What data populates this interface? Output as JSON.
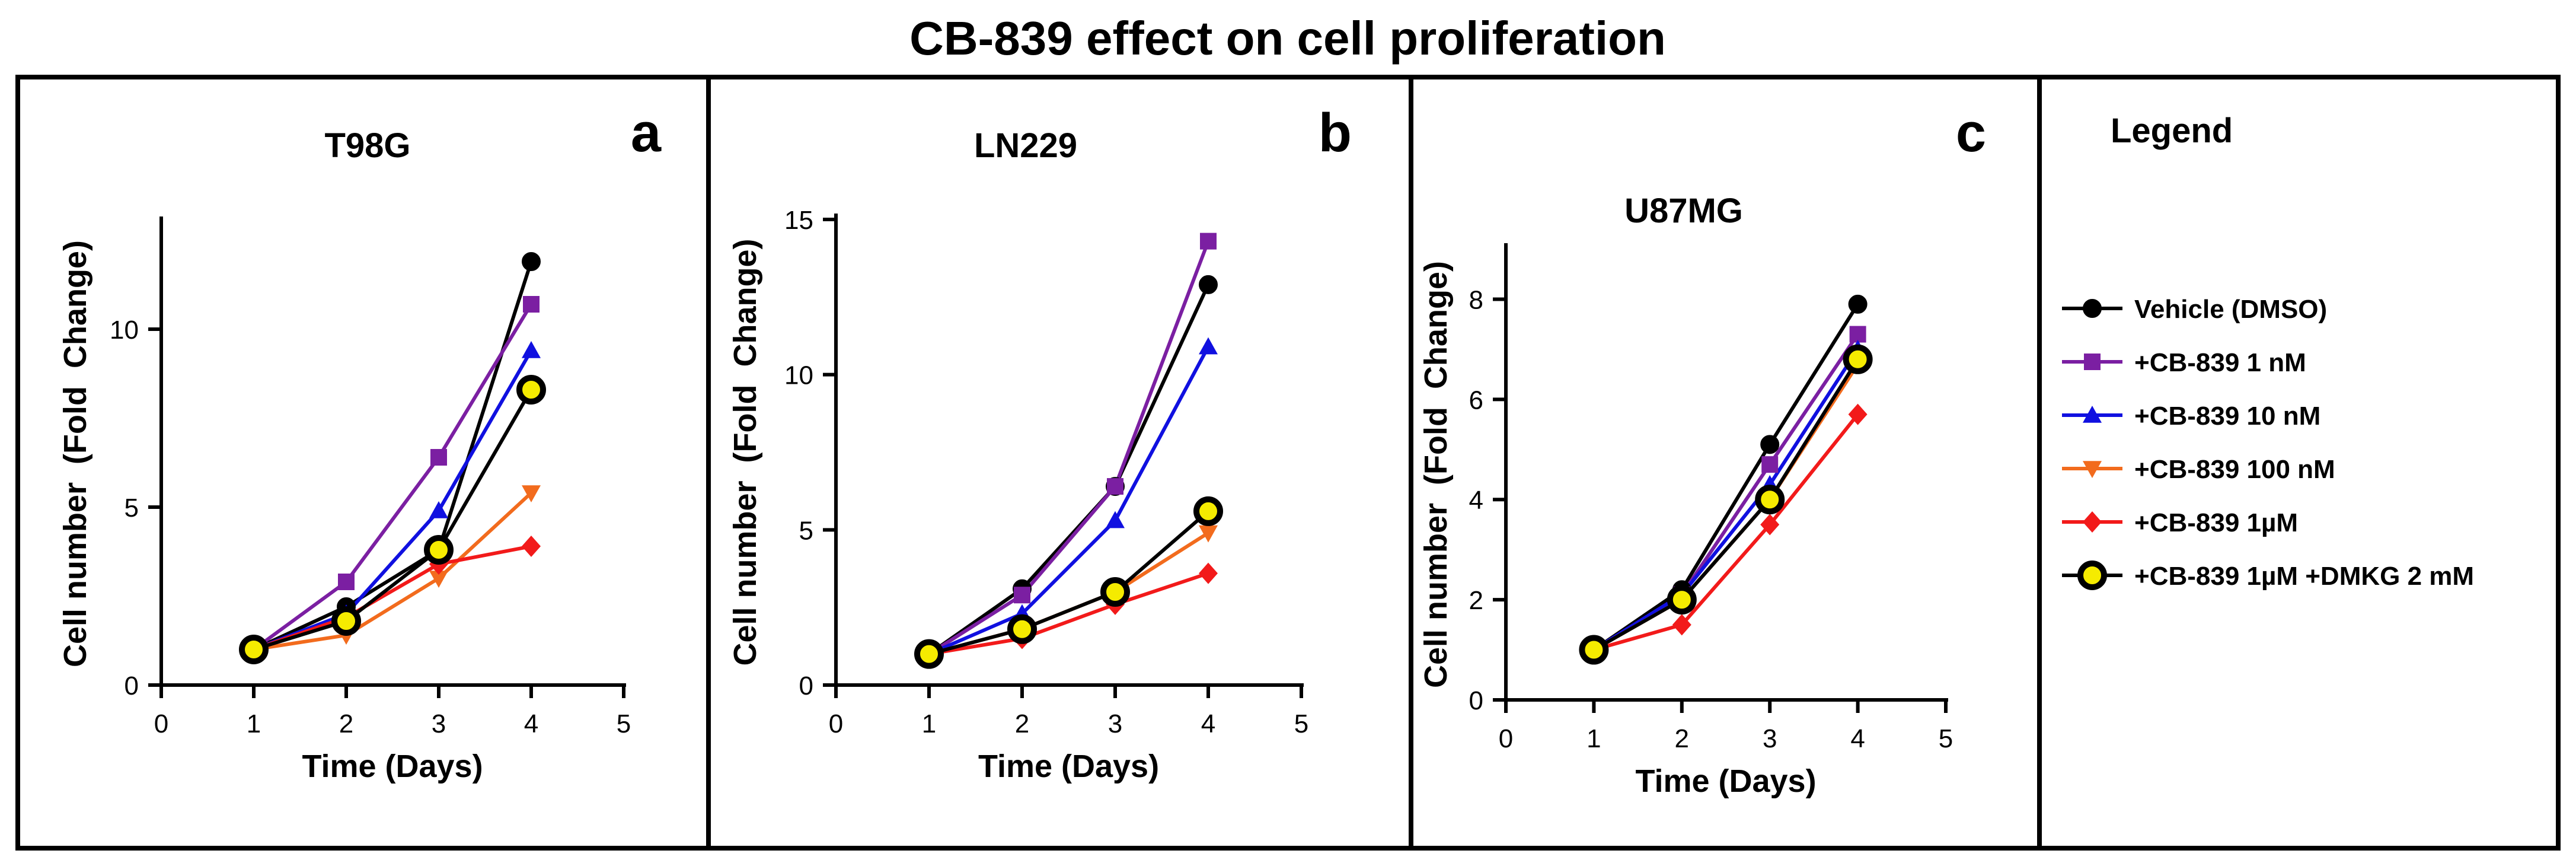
{
  "figure": {
    "title": "CB-839 effect on cell proliferation",
    "legend_title": "Legend"
  },
  "series_styles": [
    {
      "name": "Vehicle (DMSO)",
      "color": "#000000",
      "marker": "circle"
    },
    {
      "name": "+CB-839 1 nM",
      "color": "#7B1FA2",
      "marker": "square"
    },
    {
      "name": "+CB-839 10 nM",
      "color": "#1010E0",
      "marker": "triangle-up"
    },
    {
      "name": "+CB-839 100 nM",
      "color": "#F26B1D",
      "marker": "triangle-down"
    },
    {
      "name": "+CB-839 1µM",
      "color": "#F21A1A",
      "marker": "diamond"
    },
    {
      "name": "+CB-839 1µM +DMKG 2 mM",
      "color": "#000000",
      "fill": "#F5EB00",
      "marker": "circle-open"
    }
  ],
  "chart_data": [
    {
      "type": "line",
      "panel": "a",
      "title": "T98G",
      "xlabel": "Time (Days)",
      "ylabel": "Cell number  (Fold  Change)",
      "xlim": [
        0,
        5
      ],
      "ylim": [
        0,
        13
      ],
      "xticks": [
        0,
        1,
        2,
        3,
        4,
        5
      ],
      "yticks": [
        0,
        5,
        10
      ],
      "x": [
        1,
        2,
        3,
        4
      ],
      "series": [
        {
          "name": "Vehicle (DMSO)",
          "values": [
            1.0,
            2.2,
            3.8,
            11.9
          ]
        },
        {
          "name": "+CB-839 1 nM",
          "values": [
            1.0,
            2.9,
            6.4,
            10.7
          ]
        },
        {
          "name": "+CB-839 10 nM",
          "values": [
            1.0,
            2.0,
            4.9,
            9.4
          ]
        },
        {
          "name": "+CB-839 100 nM",
          "values": [
            1.0,
            1.4,
            3.0,
            5.4
          ]
        },
        {
          "name": "+CB-839 1µM",
          "values": [
            1.0,
            1.9,
            3.4,
            3.9
          ]
        },
        {
          "name": "+CB-839 1µM +DMKG 2 mM",
          "values": [
            1.0,
            1.8,
            3.8,
            8.3
          ]
        }
      ]
    },
    {
      "type": "line",
      "panel": "b",
      "title": "LN229",
      "xlabel": "Time (Days)",
      "ylabel": "Cell number  (Fold  Change)",
      "xlim": [
        0,
        5
      ],
      "ylim": [
        0,
        15
      ],
      "xticks": [
        0,
        1,
        2,
        3,
        4,
        5
      ],
      "yticks": [
        0,
        5,
        10,
        15
      ],
      "x": [
        1,
        2,
        3,
        4
      ],
      "series": [
        {
          "name": "Vehicle (DMSO)",
          "values": [
            1.0,
            3.1,
            6.4,
            12.9
          ]
        },
        {
          "name": "+CB-839 1 nM",
          "values": [
            1.0,
            2.9,
            6.4,
            14.3
          ]
        },
        {
          "name": "+CB-839 10 nM",
          "values": [
            1.0,
            2.3,
            5.3,
            10.9
          ]
        },
        {
          "name": "+CB-839 100 nM",
          "values": [
            1.0,
            1.8,
            3.0,
            4.9
          ]
        },
        {
          "name": "+CB-839 1µM",
          "values": [
            1.0,
            1.5,
            2.6,
            3.6
          ]
        },
        {
          "name": "+CB-839 1µM +DMKG 2 mM",
          "values": [
            1.0,
            1.8,
            3.0,
            5.6
          ]
        }
      ]
    },
    {
      "type": "line",
      "panel": "c",
      "title": "U87MG",
      "xlabel": "Time (Days)",
      "ylabel": "Cell number  (Fold  Change)",
      "xlim": [
        0,
        5
      ],
      "ylim": [
        0,
        9
      ],
      "xticks": [
        0,
        1,
        2,
        3,
        4,
        5
      ],
      "yticks": [
        0,
        2,
        4,
        6,
        8
      ],
      "x": [
        1,
        2,
        3,
        4
      ],
      "series": [
        {
          "name": "Vehicle (DMSO)",
          "values": [
            1.0,
            2.2,
            5.1,
            7.9
          ]
        },
        {
          "name": "+CB-839 1 nM",
          "values": [
            1.0,
            2.1,
            4.7,
            7.3
          ]
        },
        {
          "name": "+CB-839 10 nM",
          "values": [
            1.0,
            2.1,
            4.3,
            7.0
          ]
        },
        {
          "name": "+CB-839 100 nM",
          "values": [
            1.0,
            2.0,
            4.0,
            6.7
          ]
        },
        {
          "name": "+CB-839 1µM",
          "values": [
            1.0,
            1.5,
            3.5,
            5.7
          ]
        },
        {
          "name": "+CB-839 1µM +DMKG 2 mM",
          "values": [
            1.0,
            2.0,
            4.0,
            6.8
          ]
        }
      ]
    }
  ]
}
